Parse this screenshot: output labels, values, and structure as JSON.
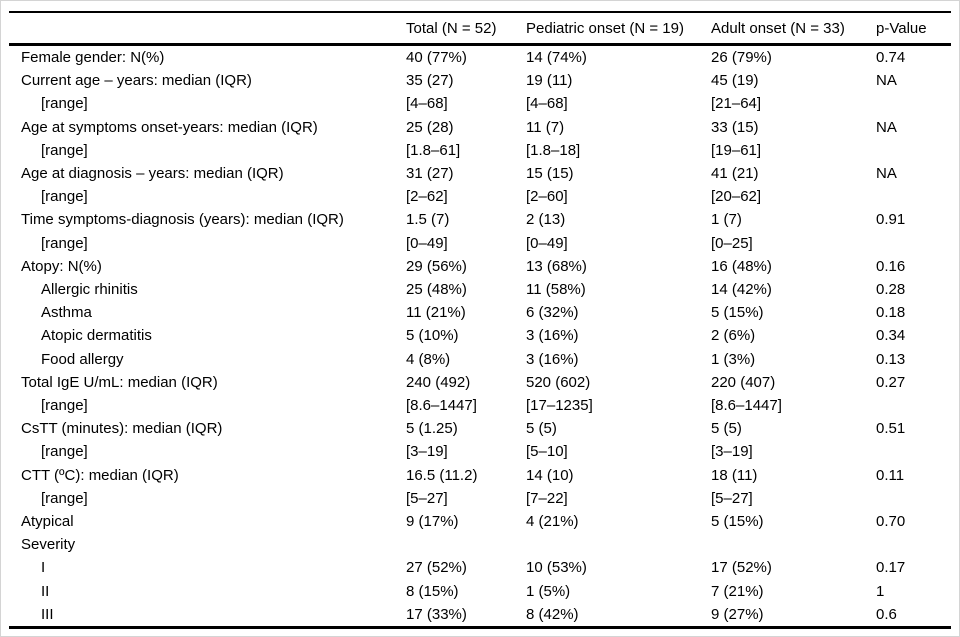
{
  "table": {
    "columns": [
      "",
      "Total (N = 52)",
      "Pediatric onset (N = 19)",
      "Adult onset (N = 33)",
      "p-Value"
    ],
    "rows": [
      {
        "label": "Female gender: N(%)",
        "indent": false,
        "total": "40 (77%)",
        "pediatric": "14 (74%)",
        "adult": "26 (79%)",
        "p": "0.74"
      },
      {
        "label": "Current age – years: median (IQR)",
        "indent": false,
        "total": "35 (27)",
        "pediatric": "19 (11)",
        "adult": "45 (19)",
        "p": "NA"
      },
      {
        "label": "[range]",
        "indent": true,
        "total": "[4–68]",
        "pediatric": "[4–68]",
        "adult": "[21–64]",
        "p": ""
      },
      {
        "label": "Age at symptoms onset-years: median (IQR)",
        "indent": false,
        "total": "25 (28)",
        "pediatric": "11 (7)",
        "adult": "33 (15)",
        "p": "NA"
      },
      {
        "label": "[range]",
        "indent": true,
        "total": "[1.8–61]",
        "pediatric": "[1.8–18]",
        "adult": "[19–61]",
        "p": ""
      },
      {
        "label": "Age at diagnosis – years: median (IQR)",
        "indent": false,
        "total": "31 (27)",
        "pediatric": "15 (15)",
        "adult": "41 (21)",
        "p": "NA"
      },
      {
        "label": "[range]",
        "indent": true,
        "total": "[2–62]",
        "pediatric": "[2–60]",
        "adult": "[20–62]",
        "p": ""
      },
      {
        "label": "Time symptoms-diagnosis (years): median (IQR)",
        "indent": false,
        "total": "1.5 (7)",
        "pediatric": "2 (13)",
        "adult": "1 (7)",
        "p": "0.91"
      },
      {
        "label": "[range]",
        "indent": true,
        "total": "[0–49]",
        "pediatric": "[0–49]",
        "adult": "[0–25]",
        "p": ""
      },
      {
        "label": "Atopy: N(%)",
        "indent": false,
        "total": "29 (56%)",
        "pediatric": "13 (68%)",
        "adult": "16 (48%)",
        "p": "0.16"
      },
      {
        "label": "Allergic rhinitis",
        "indent": true,
        "total": "25 (48%)",
        "pediatric": "11 (58%)",
        "adult": "14 (42%)",
        "p": "0.28"
      },
      {
        "label": "Asthma",
        "indent": true,
        "total": "11 (21%)",
        "pediatric": "6 (32%)",
        "adult": "5 (15%)",
        "p": "0.18"
      },
      {
        "label": "Atopic dermatitis",
        "indent": true,
        "total": "5 (10%)",
        "pediatric": "3 (16%)",
        "adult": "2 (6%)",
        "p": "0.34"
      },
      {
        "label": "Food allergy",
        "indent": true,
        "total": "4 (8%)",
        "pediatric": "3 (16%)",
        "adult": "1 (3%)",
        "p": "0.13"
      },
      {
        "label": "Total IgE U/mL: median (IQR)",
        "indent": false,
        "total": "240 (492)",
        "pediatric": "520 (602)",
        "adult": "220 (407)",
        "p": "0.27"
      },
      {
        "label": "[range]",
        "indent": true,
        "total": "[8.6–1447]",
        "pediatric": "[17–1235]",
        "adult": "[8.6–1447]",
        "p": ""
      },
      {
        "label": "CsTT (minutes): median (IQR)",
        "indent": false,
        "total": "5 (1.25)",
        "pediatric": "5 (5)",
        "adult": "5 (5)",
        "p": "0.51"
      },
      {
        "label": "[range]",
        "indent": true,
        "total": "[3–19]",
        "pediatric": "[5–10]",
        "adult": "[3–19]",
        "p": ""
      },
      {
        "label": "CTT (ºC): median (IQR)",
        "indent": false,
        "total": "16.5 (11.2)",
        "pediatric": "14 (10)",
        "adult": "18 (11)",
        "p": "0.11"
      },
      {
        "label": "[range]",
        "indent": true,
        "total": "[5–27]",
        "pediatric": "[7–22]",
        "adult": "[5–27]",
        "p": ""
      },
      {
        "label": "Atypical",
        "indent": false,
        "total": "9 (17%)",
        "pediatric": "4 (21%)",
        "adult": "5 (15%)",
        "p": "0.70"
      },
      {
        "label": "Severity",
        "indent": false,
        "total": "",
        "pediatric": "",
        "adult": "",
        "p": ""
      },
      {
        "label": "I",
        "indent": true,
        "total": "27 (52%)",
        "pediatric": "10 (53%)",
        "adult": "17 (52%)",
        "p": "0.17"
      },
      {
        "label": "II",
        "indent": true,
        "total": "8 (15%)",
        "pediatric": "1 (5%)",
        "adult": "7 (21%)",
        "p": "1"
      },
      {
        "label": "III",
        "indent": true,
        "total": "17 (33%)",
        "pediatric": "8 (42%)",
        "adult": "9 (27%)",
        "p": "0.6"
      }
    ]
  }
}
